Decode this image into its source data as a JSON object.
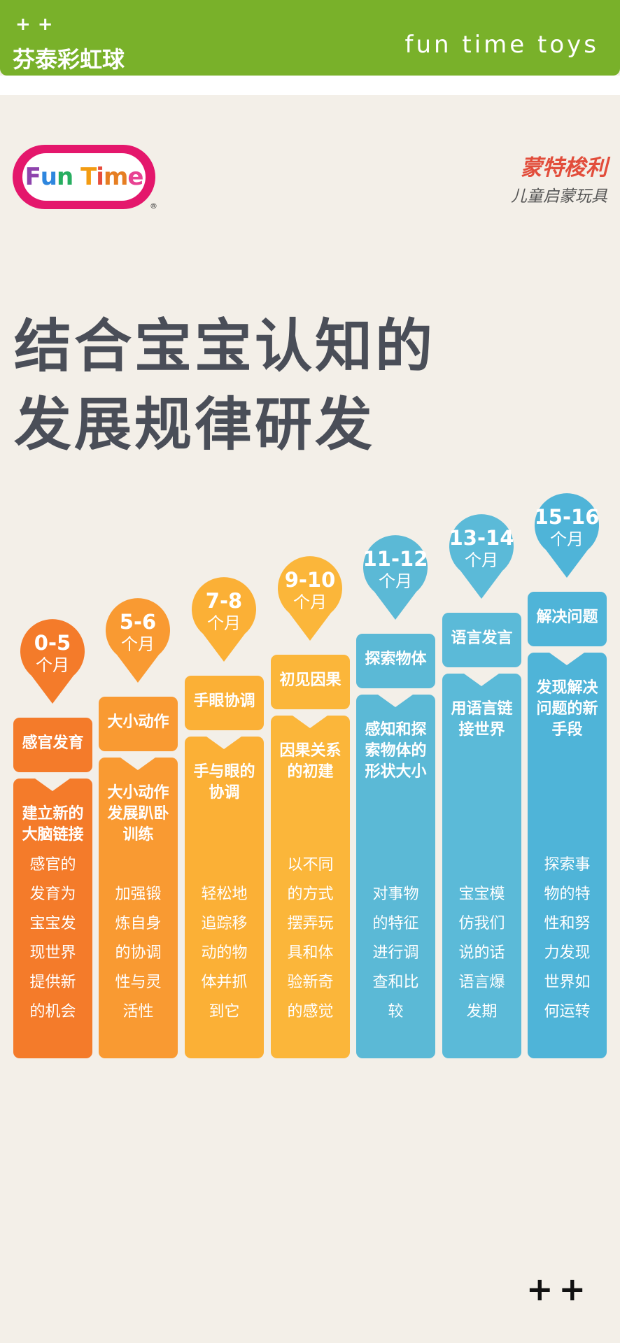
{
  "header": {
    "plus_marks": "++",
    "brand_cn": "芬泰彩虹球",
    "brand_en": "fun time toys"
  },
  "logo": {
    "letters": [
      {
        "ch": "F",
        "color": "#8e44ad"
      },
      {
        "ch": "u",
        "color": "#2e86de"
      },
      {
        "ch": "n",
        "color": "#27ae60"
      },
      {
        "ch": " ",
        "color": "#000000"
      },
      {
        "ch": "T",
        "color": "#f39c12"
      },
      {
        "ch": "i",
        "color": "#e74c3c"
      },
      {
        "ch": "m",
        "color": "#e67e22"
      },
      {
        "ch": "e",
        "color": "#e84393"
      }
    ],
    "reg": "®"
  },
  "montessori": {
    "title": "蒙特梭利",
    "subtitle": "儿童启蒙玩具"
  },
  "headline": {
    "line1": "结合宝宝认知的",
    "line2": "发展规律研发"
  },
  "colors": {
    "stage1": "#f47b2a",
    "stage2": "#f99a32",
    "stage3": "#fbb036",
    "stage4": "#fbb63a",
    "stage5": "#5bb9d6",
    "stage6": "#5bbad8",
    "stage7": "#4fb4d8"
  },
  "stages": [
    {
      "age": "0-5",
      "unit": "个月",
      "title": "感官发育",
      "subtitle": [
        "建立新的",
        "大脑链接"
      ],
      "desc": [
        "感官的",
        "发育为",
        "宝宝发",
        "现世界",
        "提供新",
        "的机会"
      ]
    },
    {
      "age": "5-6",
      "unit": "个月",
      "title": "大小动作",
      "subtitle": [
        "大小动作",
        "发展趴卧",
        "训练"
      ],
      "desc": [
        "加强锻",
        "炼自身",
        "的协调",
        "性与灵",
        "活性"
      ]
    },
    {
      "age": "7-8",
      "unit": "个月",
      "title": "手眼协调",
      "subtitle": [
        "手与眼的",
        "协调"
      ],
      "desc": [
        "轻松地",
        "追踪移",
        "动的物",
        "体并抓",
        "到它"
      ]
    },
    {
      "age": "9-10",
      "unit": "个月",
      "title": "初见因果",
      "subtitle": [
        "因果关系",
        "的初建"
      ],
      "desc": [
        "以不同",
        "的方式",
        "摆弄玩",
        "具和体",
        "验新奇",
        "的感觉"
      ]
    },
    {
      "age": "11-12",
      "unit": "个月",
      "title": "探索物体",
      "subtitle": [
        "感知和探",
        "索物体的",
        "形状大小"
      ],
      "desc": [
        "对事物",
        "的特征",
        "进行调",
        "查和比",
        "较"
      ]
    },
    {
      "age": "13-14",
      "unit": "个月",
      "title": "语言发言",
      "subtitle": [
        "用语言链",
        "接世界"
      ],
      "desc": [
        "宝宝模",
        "仿我们",
        "说的话",
        "语言爆",
        "发期"
      ]
    },
    {
      "age": "15-16",
      "unit": "个月",
      "title": "解决问题",
      "subtitle": [
        "发现解决",
        "问题的新",
        "手段"
      ],
      "desc": [
        "探索事",
        "物的特",
        "性和努",
        "力发现",
        "世界如",
        "何运转"
      ]
    }
  ],
  "footer": {
    "plus_marks": "++"
  }
}
